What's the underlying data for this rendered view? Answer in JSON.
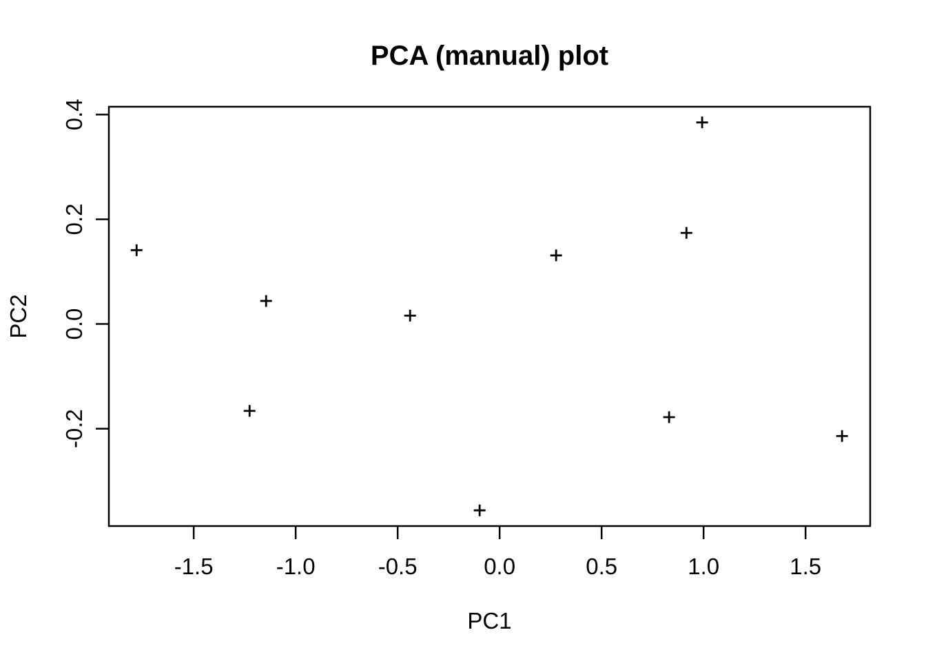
{
  "chart_data": {
    "type": "scatter",
    "title": "PCA (manual) plot",
    "xlabel": "PC1",
    "ylabel": "PC2",
    "marker": "plus",
    "marker_color": "#000000",
    "background_color": "#ffffff",
    "axis_color": "#000000",
    "grid": false,
    "legend": null,
    "xlim": [
      -1.916,
      1.817
    ],
    "ylim": [
      -0.386,
      0.415
    ],
    "xticks": [
      -1.5,
      -1.0,
      -0.5,
      0.0,
      0.5,
      1.0,
      1.5
    ],
    "xtick_labels": [
      "-1.5",
      "-1.0",
      "-0.5",
      "0.0",
      "0.5",
      "1.0",
      "1.5"
    ],
    "yticks": [
      -0.2,
      0.0,
      0.2,
      0.4
    ],
    "ytick_labels": [
      "-0.2",
      "0.0",
      "0.2",
      "0.4"
    ],
    "points": [
      {
        "x": -1.78,
        "y": 0.141
      },
      {
        "x": -1.226,
        "y": -0.166
      },
      {
        "x": -1.145,
        "y": 0.044
      },
      {
        "x": -0.439,
        "y": 0.016
      },
      {
        "x": -0.098,
        "y": -0.356
      },
      {
        "x": 0.277,
        "y": 0.131
      },
      {
        "x": 0.831,
        "y": -0.178
      },
      {
        "x": 0.916,
        "y": 0.174
      },
      {
        "x": 0.993,
        "y": 0.385
      },
      {
        "x": 1.679,
        "y": -0.214
      }
    ]
  }
}
